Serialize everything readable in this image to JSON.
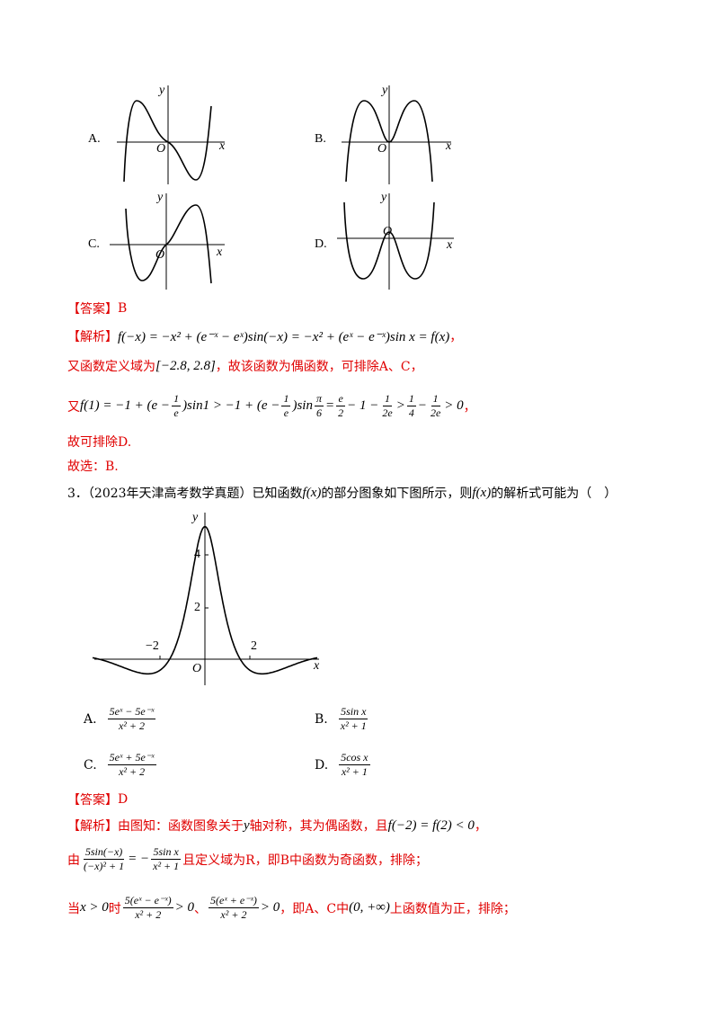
{
  "graphs": [
    {
      "label": "A.",
      "x": "x",
      "y": "y",
      "origin": "O"
    },
    {
      "label": "B.",
      "x": "x",
      "y": "y",
      "origin": "O"
    },
    {
      "label": "C.",
      "x": "x",
      "y": "y",
      "origin": "O"
    },
    {
      "label": "D.",
      "x": "x",
      "y": "y",
      "origin": "O"
    }
  ],
  "answer1": [
    "【答案】",
    "B"
  ],
  "analysis1": {
    "line1": [
      "【解析】",
      {
        "m": "f(−x) = −x² + (e⁻ˣ − eˣ)sin(−x) = −x² + (eˣ − e⁻ˣ)sin x = f(x)"
      },
      "，"
    ],
    "line2": [
      "又函数定义域为",
      {
        "m": "[−2.8, 2.8]"
      },
      "，故该函数为偶函数，可排除A、C，"
    ],
    "line3": [
      "又",
      {
        "m": "f(1) = −1 + (e −"
      },
      {
        "n": "1",
        "d": "e"
      },
      {
        "m": ")sin1 > −1 + (e −"
      },
      {
        "n": "1",
        "d": "e"
      },
      {
        "m": ")sin"
      },
      {
        "n": "π",
        "d": "6"
      },
      {
        "m": "="
      },
      {
        "n": "e",
        "d": "2"
      },
      {
        "m": "− 1 −"
      },
      {
        "n": "1",
        "d": "2e"
      },
      {
        "m": ">"
      },
      {
        "n": "1",
        "d": "4"
      },
      {
        "m": "−"
      },
      {
        "n": "1",
        "d": "2e"
      },
      {
        "m": "> 0"
      },
      "，"
    ],
    "line4": [
      "故可排除D."
    ],
    "line5": [
      "故选：B."
    ]
  },
  "question3": {
    "stem": [
      "3．（2023年天津高考数学真题）已知函数",
      {
        "m": "f(x)"
      },
      "的部分图象如下图所示，则",
      {
        "m": "f(x)"
      },
      "的解析式可能为（　）"
    ],
    "graph": {
      "x": "x",
      "y": "y",
      "origin": "O",
      "yticks": [
        "4",
        "2"
      ],
      "xticks": [
        "−2",
        "2"
      ]
    },
    "options": [
      {
        "label": "A.",
        "num": "5eˣ − 5e⁻ˣ",
        "den": "x² + 2"
      },
      {
        "label": "B.",
        "num": "5sin x",
        "den": "x² + 1"
      },
      {
        "label": "C.",
        "num": "5eˣ + 5e⁻ˣ",
        "den": "x² + 2"
      },
      {
        "label": "D.",
        "num": "5cos x",
        "den": "x² + 1"
      }
    ]
  },
  "answer2": [
    "【答案】",
    "D"
  ],
  "analysis2": {
    "line1": [
      "【解析】",
      "由图知：函数图象关于",
      {
        "m": "y"
      },
      "轴对称，其为偶函数，且",
      {
        "m": "f(−2) = f(2) < 0"
      },
      "，"
    ],
    "line2": [
      "由",
      {
        "n": "5sin(−x)",
        "d": "(−x)² + 1"
      },
      {
        "m": "= −"
      },
      {
        "n": "5sin x",
        "d": "x² + 1"
      },
      "且定义域为R，即B中函数为奇函数，排除；"
    ],
    "line3": [
      "当",
      {
        "m": "x > 0"
      },
      "时",
      {
        "n": "5(eˣ − e⁻ˣ)",
        "d": "x² + 2"
      },
      {
        "m": "> 0"
      },
      "、",
      {
        "n": "5(eˣ + e⁻ˣ)",
        "d": "x² + 2"
      },
      {
        "m": "> 0"
      },
      "，即A、C中",
      {
        "m": "(0, +∞)"
      },
      "上函数值为正，排除；"
    ]
  }
}
